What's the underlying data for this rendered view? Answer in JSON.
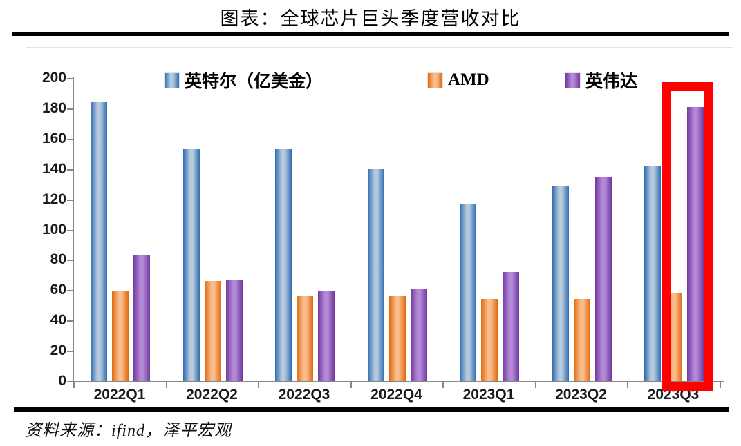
{
  "title": "图表：全球芯片巨头季度营收对比",
  "source": "资料来源：ifind，泽平宏观",
  "colors": {
    "highlight_box": "#fe0000",
    "axis": "#868686",
    "text": "#1a1a1a",
    "rule": "#000000"
  },
  "chart_data": {
    "type": "bar",
    "title": "图表：全球芯片巨头季度营收对比",
    "categories": [
      "2022Q1",
      "2022Q2",
      "2022Q3",
      "2022Q4",
      "2023Q1",
      "2023Q2",
      "2023Q3"
    ],
    "series": [
      {
        "name": "英特尔（亿美金）",
        "values": [
          184,
          153,
          153,
          140,
          117,
          129,
          142
        ],
        "edge_color": "#2e6db4",
        "mid_color": "#b7cadd"
      },
      {
        "name": "AMD",
        "values": [
          59,
          66,
          56,
          56,
          54,
          54,
          58
        ],
        "edge_color": "#e2690c",
        "mid_color": "#f9bd8d"
      },
      {
        "name": "英伟达",
        "values": [
          83,
          67,
          59,
          61,
          72,
          135,
          181
        ],
        "edge_color": "#7139a0",
        "mid_color": "#b astana"
      }
    ],
    "xlabel": "",
    "ylabel": "",
    "ylim": [
      0,
      200
    ],
    "yticks": [
      0,
      20,
      40,
      60,
      80,
      100,
      120,
      140,
      160,
      180,
      200
    ],
    "grid": false,
    "legend_position": "top",
    "annotation": {
      "type": "red-box",
      "target_category": "2023Q3",
      "target_series": "英伟达"
    }
  }
}
